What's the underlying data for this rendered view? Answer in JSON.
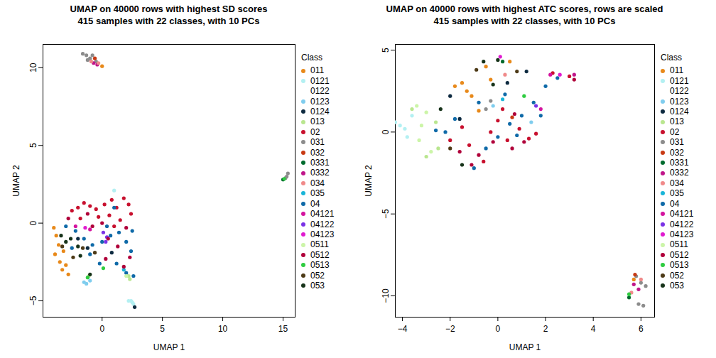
{
  "chart_data": [
    {
      "type": "scatter",
      "title": "UMAP on 40000 rows with highest SD scores",
      "subtitle": "415 samples with 22 classes, with 10 PCs",
      "xlabel": "UMAP 1",
      "ylabel": "UMAP 2",
      "xlim": [
        -4.9,
        16.0
      ],
      "ylim": [
        -6.05,
        11.5
      ],
      "xticks": [
        0,
        5,
        10,
        15
      ],
      "yticks": [
        -5,
        0,
        5,
        10
      ],
      "legend_title": "Class",
      "series": [
        {
          "name": "011",
          "color": "#e8891a",
          "x": [
            -4.0,
            -3.8,
            -3.6,
            -3.9,
            -3.5,
            -3.3,
            -3.0,
            -3.2,
            -2.8,
            0.0
          ],
          "y": [
            -0.3,
            -0.8,
            -1.4,
            -2.0,
            -2.5,
            -3.0,
            -2.7,
            -1.8,
            -3.3,
            10.1
          ]
        },
        {
          "name": "0121",
          "color": "#b3f0f2",
          "x": [
            1.0,
            2.4,
            2.5,
            2.2,
            2.6
          ],
          "y": [
            2.1,
            -5.0,
            -5.1,
            -5.0,
            -5.2
          ]
        },
        {
          "name": "0122",
          "color": "#ffffff",
          "x": [],
          "y": []
        },
        {
          "name": "0123",
          "color": "#7fcdee",
          "x": [
            -1.5,
            -1.3,
            -1.0
          ],
          "y": [
            -3.8,
            -3.9,
            -3.7
          ]
        },
        {
          "name": "0124",
          "color": "#0d2a40",
          "x": [
            -2.0,
            -1.2,
            0.8,
            2.7
          ],
          "y": [
            -1.0,
            -1.6,
            -1.9,
            -5.4
          ]
        },
        {
          "name": "013",
          "color": "#b9e68f",
          "x": [
            2.2,
            2.3,
            -1.1
          ],
          "y": [
            -3.4,
            -3.6,
            -3.4
          ]
        },
        {
          "name": "02",
          "color": "#c8102e",
          "x": [
            -2.5,
            -2.0,
            -1.5,
            -1.0,
            -0.5,
            0.2,
            0.8,
            1.2,
            1.8,
            2.2,
            2.4,
            1.5,
            -0.3,
            0.6,
            -1.8,
            1.0
          ],
          "y": [
            0.8,
            1.0,
            1.3,
            1.1,
            0.9,
            1.2,
            1.5,
            1.0,
            1.6,
            1.2,
            0.6,
            0.2,
            0.4,
            0.5,
            0.3,
            -0.2
          ]
        },
        {
          "name": "031",
          "color": "#8c8c8c",
          "x": [
            -1.6,
            -1.3,
            -1.0,
            -0.8,
            -1.2,
            -0.5,
            15.4,
            15.3,
            15.2
          ],
          "y": [
            10.9,
            10.8,
            10.6,
            10.8,
            10.5,
            10.4,
            3.2,
            3.0,
            2.9
          ]
        },
        {
          "name": "032",
          "color": "#c83a14",
          "x": [
            -0.6
          ],
          "y": [
            10.6
          ]
        },
        {
          "name": "0331",
          "color": "#006b2e",
          "x": [
            15.0
          ],
          "y": [
            2.8
          ]
        },
        {
          "name": "0332",
          "color": "#c0168a",
          "x": [
            -0.7,
            -0.4
          ],
          "y": [
            10.3,
            10.2
          ]
        },
        {
          "name": "034",
          "color": "#f08a8a",
          "x": [
            -0.9,
            -0.3
          ],
          "y": [
            10.4,
            10.3
          ]
        },
        {
          "name": "035",
          "color": "#19b5d8",
          "x": [
            1.8
          ],
          "y": [
            -3.0
          ]
        },
        {
          "name": "04",
          "color": "#0f6aa8",
          "x": [
            -3.0,
            -2.2,
            -1.5,
            -0.8,
            0.0,
            0.7,
            1.4,
            2.0,
            2.4,
            2.0,
            2.6,
            1.2,
            -0.2,
            -1.0,
            0.4,
            1.0,
            -2.5,
            2.5
          ],
          "y": [
            -0.2,
            -0.5,
            -1.0,
            -1.4,
            -1.2,
            -0.8,
            -0.6,
            -1.2,
            -1.8,
            -3.2,
            -3.4,
            -2.6,
            -2.6,
            -2.0,
            -0.2,
            1.0,
            -1.6,
            -0.5
          ]
        },
        {
          "name": "04121",
          "color": "#d4149f",
          "x": [
            -2.2,
            -1.0
          ],
          "y": [
            -0.2,
            -0.4
          ]
        },
        {
          "name": "04122",
          "color": "#7a32e6",
          "x": [
            0.1,
            0.3,
            0.4
          ],
          "y": [
            -0.6,
            -1.2,
            -0.9
          ]
        },
        {
          "name": "04123",
          "color": "#e01bd0",
          "x": [
            -1.4
          ],
          "y": [
            -0.3
          ]
        },
        {
          "name": "0511",
          "color": "#ccf5a8",
          "x": [
            2.0
          ],
          "y": [
            -3.4
          ]
        },
        {
          "name": "0512",
          "color": "#b0003a",
          "x": [
            -2.8,
            -1.2,
            0.0,
            0.5,
            1.3,
            2.0,
            2.3,
            1.8,
            -0.8,
            0.3
          ],
          "y": [
            0.3,
            0.6,
            0.0,
            -1.0,
            -1.5,
            -0.3,
            -2.2,
            -2.8,
            -0.2,
            -2.3
          ]
        },
        {
          "name": "0513",
          "color": "#2ecc40",
          "x": [
            -1.2,
            0.1,
            15.1
          ],
          "y": [
            -3.5,
            -2.9,
            2.85
          ]
        },
        {
          "name": "052",
          "color": "#4d3a17",
          "x": [
            -3.3,
            -2.4,
            -1.6,
            -0.6
          ],
          "y": [
            -1.5,
            -2.2,
            -1.6,
            -1.9
          ]
        },
        {
          "name": "053",
          "color": "#17331a",
          "x": [
            -3.4,
            -3.0,
            -2.6,
            -2.0,
            -1.0,
            -1.8
          ],
          "y": [
            -0.8,
            -1.2,
            -1.0,
            -1.5,
            -3.3,
            -2.1
          ]
        }
      ]
    },
    {
      "type": "scatter",
      "title": "UMAP on 40000 rows with highest ATC scores, rows are scaled",
      "subtitle": "415 samples with 22 classes, with 10 PCs",
      "xlabel": "UMAP 1",
      "ylabel": "UMAP 2",
      "xlim": [
        -4.3,
        6.57
      ],
      "ylim": [
        -11.3,
        5.35
      ],
      "xticks": [
        -4,
        -2,
        0,
        2,
        4,
        6
      ],
      "yticks": [
        -10,
        -5,
        0,
        5
      ],
      "legend_title": "Class",
      "series": [
        {
          "name": "011",
          "color": "#e8891a",
          "x": [
            -1.5,
            -1.3,
            -1.8,
            -0.8,
            -0.3,
            0.5,
            -0.5,
            -1.1,
            5.7
          ],
          "y": [
            3.0,
            2.5,
            2.8,
            1.3,
            3.2,
            4.3,
            4.0,
            2.2,
            -9.0
          ]
        },
        {
          "name": "0121",
          "color": "#b3f0f2",
          "x": [
            -4.3,
            -4.1,
            -3.9,
            -3.6,
            -3.8
          ],
          "y": [
            0.6,
            0.4,
            0.2,
            1.0,
            -0.3
          ]
        },
        {
          "name": "0122",
          "color": "#ffffff",
          "x": [],
          "y": []
        },
        {
          "name": "0123",
          "color": "#7fcdee",
          "x": [
            -0.2,
            1.4
          ],
          "y": [
            1.6,
            0.6
          ]
        },
        {
          "name": "0124",
          "color": "#0d2a40",
          "x": [
            -1.6,
            -2.0,
            0.4,
            1.2
          ],
          "y": [
            0.8,
            2.2,
            3.0,
            3.7
          ]
        },
        {
          "name": "013",
          "color": "#b9e68f",
          "x": [
            -3.6,
            -2.6,
            -3.0,
            -2.5
          ],
          "y": [
            1.4,
            0.6,
            -1.5,
            -1.0
          ]
        },
        {
          "name": "02",
          "color": "#c8102e",
          "x": [
            -2.0,
            -1.2,
            -0.6,
            0.0,
            0.4,
            0.9,
            1.3,
            0.2,
            -0.3,
            1.6,
            -1.5,
            3.0,
            2.3
          ],
          "y": [
            -0.5,
            -0.8,
            -1.8,
            0.7,
            -0.5,
            0.2,
            -0.4,
            1.4,
            0.0,
            -0.1,
            0.3,
            3.4,
            3.6
          ]
        },
        {
          "name": "031",
          "color": "#8c8c8c",
          "x": [
            5.8,
            6.0,
            6.1,
            5.9,
            6.2,
            -0.5,
            -0.3
          ],
          "y": [
            -8.8,
            -9.2,
            -10.6,
            -10.5,
            -9.4,
            1.4,
            1.9
          ]
        },
        {
          "name": "032",
          "color": "#c83a14",
          "x": [
            5.75,
            0.6
          ],
          "y": [
            -8.7,
            0.9
          ]
        },
        {
          "name": "0331",
          "color": "#006b2e",
          "x": [
            5.5,
            0.2
          ],
          "y": [
            -10.1,
            4.3
          ]
        },
        {
          "name": "0332",
          "color": "#c0168a",
          "x": [
            5.7,
            5.9,
            3.2
          ],
          "y": [
            -9.3,
            -9.6,
            3.5
          ]
        },
        {
          "name": "034",
          "color": "#f08a8a",
          "x": [
            6.0,
            5.6,
            0.3
          ],
          "y": [
            -9.0,
            -9.8,
            3.5
          ]
        },
        {
          "name": "035",
          "color": "#19b5d8",
          "x": [
            0.2
          ],
          "y": [
            2.0
          ]
        },
        {
          "name": "04",
          "color": "#0f6aa8",
          "x": [
            -1.0,
            -0.5,
            0.0,
            0.5,
            1.0,
            1.5,
            2.0,
            2.5,
            -1.8,
            -2.2,
            0.8,
            1.8,
            -0.8,
            0.3,
            -2.6
          ],
          "y": [
            -2.2,
            -1.0,
            -0.3,
            0.5,
            1.0,
            1.8,
            2.8,
            3.3,
            0.8,
            0.0,
            -0.2,
            1.0,
            1.8,
            2.3,
            0.1
          ]
        },
        {
          "name": "04121",
          "color": "#d4149f",
          "x": [
            2.2,
            1.8
          ],
          "y": [
            3.5,
            1.4
          ]
        },
        {
          "name": "04122",
          "color": "#7a32e6",
          "x": [
            1.6
          ],
          "y": [
            1.6
          ]
        },
        {
          "name": "04123",
          "color": "#e01bd0",
          "x": [
            2.6,
            0.1
          ],
          "y": [
            3.5,
            4.6
          ]
        },
        {
          "name": "0511",
          "color": "#ccf5a8",
          "x": [
            -3.4,
            -3.0,
            -3.2,
            -2.8,
            -3.3
          ],
          "y": [
            1.6,
            1.2,
            0.4,
            -1.2,
            -0.5
          ]
        },
        {
          "name": "0512",
          "color": "#b0003a",
          "x": [
            -1.1,
            -0.8,
            0.6,
            1.1,
            -0.2,
            0.7,
            -1.6,
            3.2
          ],
          "y": [
            -2.0,
            -1.4,
            -1.0,
            -0.6,
            -0.6,
            1.1,
            -1.2,
            3.2
          ]
        },
        {
          "name": "0513",
          "color": "#2ecc40",
          "x": [
            5.5,
            1.1
          ],
          "y": [
            -9.9,
            2.2
          ]
        },
        {
          "name": "052",
          "color": "#4d3a17",
          "x": [
            -0.9,
            0.8,
            -2.0
          ],
          "y": [
            3.8,
            3.7,
            -1.0
          ]
        },
        {
          "name": "053",
          "color": "#17331a",
          "x": [
            -0.2,
            -0.6,
            -2.4,
            -1.5,
            0.0
          ],
          "y": [
            2.9,
            4.3,
            1.4,
            -2.0,
            4.4
          ]
        }
      ]
    }
  ]
}
